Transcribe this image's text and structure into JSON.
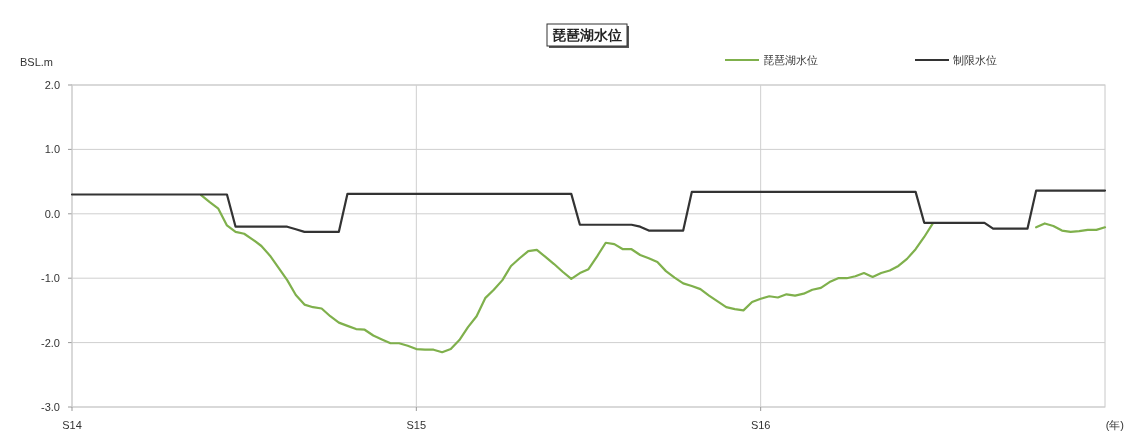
{
  "chart_data": {
    "type": "line",
    "title": "琵琶湖水位",
    "ylabel": "BSL.m",
    "xlabel": "(年)",
    "categories": [
      "S14",
      null,
      null,
      null,
      null,
      null,
      null,
      null,
      null,
      null,
      null,
      null,
      null,
      null,
      null,
      null,
      null,
      null,
      null,
      null,
      null,
      null,
      null,
      null,
      null,
      null,
      null,
      null,
      null,
      null,
      null,
      null,
      null,
      null,
      null,
      null,
      null,
      null,
      null,
      null,
      "S15",
      null,
      null,
      null,
      null,
      null,
      null,
      null,
      null,
      null,
      null,
      null,
      null,
      null,
      null,
      null,
      null,
      null,
      null,
      null,
      null,
      null,
      null,
      null,
      null,
      null,
      null,
      null,
      null,
      null,
      null,
      null,
      null,
      null,
      null,
      null,
      null,
      null,
      null,
      null,
      "S16",
      null,
      null,
      null,
      null,
      null,
      null,
      null,
      null,
      null,
      null,
      null,
      null,
      null,
      null,
      null,
      null,
      null,
      null,
      null,
      null,
      null,
      null,
      null,
      null,
      null,
      null,
      null,
      null,
      null,
      null,
      null,
      null,
      null,
      null,
      null,
      null,
      null,
      null,
      null,
      null
    ],
    "ylim": [
      -3,
      2
    ],
    "yticks": [
      {
        "value": 2,
        "label": "2.0"
      },
      {
        "value": 1,
        "label": "1.0"
      },
      {
        "value": 0,
        "label": "0.0"
      },
      {
        "value": -1,
        "label": "-1.0"
      },
      {
        "value": -2,
        "label": "-2.0"
      },
      {
        "value": -3,
        "label": "-3.0"
      }
    ],
    "grid": true,
    "legend": "top right",
    "marker": "none",
    "line_style": "solid",
    "series": [
      {
        "name": "琵琶湖水位",
        "color": "#7fb04c",
        "values": [
          null,
          null,
          null,
          null,
          null,
          null,
          null,
          null,
          null,
          null,
          null,
          null,
          null,
          null,
          null,
          0.29,
          0.18,
          0.08,
          -0.18,
          -0.28,
          -0.31,
          -0.4,
          -0.5,
          -0.65,
          -0.84,
          -1.03,
          -1.26,
          -1.41,
          -1.45,
          -1.47,
          -1.59,
          -1.69,
          -1.74,
          -1.79,
          -1.8,
          -1.89,
          -1.95,
          -2.01,
          -2.01,
          -2.05,
          -2.1,
          -2.11,
          -2.11,
          -2.15,
          -2.1,
          -1.96,
          -1.76,
          -1.59,
          -1.31,
          -1.18,
          -1.03,
          -0.81,
          -0.69,
          -0.58,
          -0.56,
          -0.67,
          -0.78,
          -0.9,
          -1.01,
          -0.92,
          -0.86,
          -0.66,
          -0.45,
          -0.47,
          -0.55,
          -0.55,
          -0.64,
          -0.69,
          -0.75,
          -0.89,
          -0.99,
          -1.08,
          -1.12,
          -1.17,
          -1.27,
          -1.36,
          -1.45,
          -1.48,
          -1.5,
          -1.37,
          -1.32,
          -1.28,
          -1.3,
          -1.25,
          -1.27,
          -1.24,
          -1.18,
          -1.15,
          -1.06,
          -1.0,
          -1.0,
          -0.97,
          -0.92,
          -0.98,
          -0.92,
          -0.88,
          -0.81,
          -0.7,
          -0.55,
          -0.36,
          -0.15,
          null,
          null,
          null,
          null,
          null,
          null,
          null,
          null,
          null,
          null,
          null,
          -0.21,
          -0.15,
          -0.19,
          -0.26,
          -0.28,
          -0.27,
          -0.25,
          -0.25,
          -0.21
        ]
      },
      {
        "name": "制限水位",
        "color": "#333333",
        "values": [
          0.3,
          0.3,
          0.3,
          0.3,
          0.3,
          0.3,
          0.3,
          0.3,
          0.3,
          0.3,
          0.3,
          0.3,
          0.3,
          0.3,
          0.3,
          0.3,
          0.3,
          0.3,
          0.3,
          -0.2,
          -0.2,
          -0.2,
          -0.2,
          -0.2,
          -0.2,
          -0.2,
          -0.24,
          -0.28,
          -0.28,
          -0.28,
          -0.28,
          -0.28,
          0.31,
          0.31,
          0.31,
          0.31,
          0.31,
          0.31,
          0.31,
          0.31,
          0.31,
          0.31,
          0.31,
          0.31,
          0.31,
          0.31,
          0.31,
          0.31,
          0.31,
          0.31,
          0.31,
          0.31,
          0.31,
          0.31,
          0.31,
          0.31,
          0.31,
          0.31,
          0.31,
          -0.17,
          -0.17,
          -0.17,
          -0.17,
          -0.17,
          -0.17,
          -0.17,
          -0.2,
          -0.26,
          -0.26,
          -0.26,
          -0.26,
          -0.26,
          0.34,
          0.34,
          0.34,
          0.34,
          0.34,
          0.34,
          0.34,
          0.34,
          0.34,
          0.34,
          0.34,
          0.34,
          0.34,
          0.34,
          0.34,
          0.34,
          0.34,
          0.34,
          0.34,
          0.34,
          0.34,
          0.34,
          0.34,
          0.34,
          0.34,
          0.34,
          0.34,
          -0.14,
          -0.14,
          -0.14,
          -0.14,
          -0.14,
          -0.14,
          -0.14,
          -0.14,
          -0.23,
          -0.23,
          -0.23,
          -0.23,
          -0.23,
          0.36,
          0.36,
          0.36,
          0.36,
          0.36,
          0.36,
          0.36,
          0.36,
          0.36
        ]
      }
    ]
  }
}
